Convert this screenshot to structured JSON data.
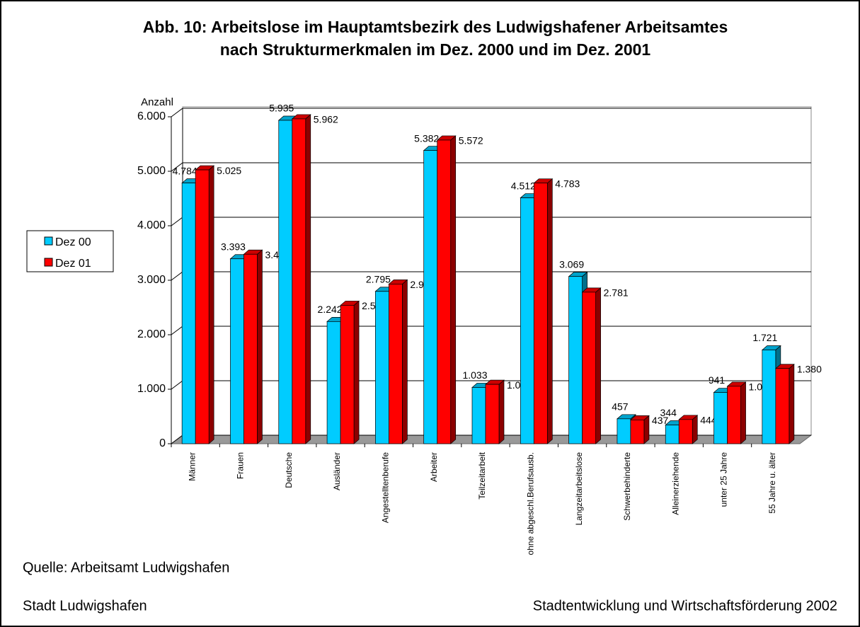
{
  "chart_data": {
    "type": "bar",
    "title": "Abb. 10: Arbeitslose im Hauptamtsbezirk des Ludwigshafener Arbeitsamtes",
    "subtitle": "nach Strukturmerkmalen im Dez. 2000 und im Dez. 2001",
    "y_label": "Anzahl",
    "categories": [
      "Männer",
      "Frauen",
      "Deutsche",
      "Ausländer",
      "Angestelltenberufe",
      "Arbeiter",
      "Teilzeitarbeit",
      "ohne abgeschl.Berufsausb.",
      "Langzeitarbeitslose",
      "Schwerbehinderte",
      "Alleinerziehende",
      "unter 25 Jahre",
      "55 Jahre u. älter"
    ],
    "series": [
      {
        "name": "Dez 00",
        "color": "#00ccff",
        "values": [
          4784,
          3393,
          5935,
          2242,
          2795,
          5382,
          1033,
          4512,
          3069,
          457,
          344,
          941,
          1721
        ],
        "value_labels": [
          "4.784",
          "3.393",
          "5.935",
          "2.242",
          "2.795",
          "5.382",
          "1.033",
          "4.512",
          "3.069",
          "457",
          "344",
          "941",
          "1.721"
        ]
      },
      {
        "name": "Dez 01",
        "color": "#ff0000",
        "values": [
          5025,
          3477,
          5962,
          2540,
          2930,
          5572,
          1089,
          4783,
          2781,
          437,
          444,
          1054,
          1380
        ],
        "value_labels": [
          "5.025",
          "3.477",
          "5.962",
          "2.540",
          "2.930",
          "5.572",
          "1.089",
          "4.783",
          "2.781",
          "437",
          "444",
          "1.054",
          "1.380"
        ]
      }
    ],
    "ylim": [
      0,
      6000
    ],
    "yticks": [
      0,
      {
        "value": 1000,
        "label": "1.000"
      },
      {
        "value": 2000,
        "label": "2.000"
      },
      {
        "value": 3000,
        "label": "3.000"
      },
      {
        "value": 4000,
        "label": "4.000"
      },
      {
        "value": 5000,
        "label": "5.000"
      },
      {
        "value": 6000,
        "label": "6.000"
      }
    ],
    "grid": true,
    "legend": "left",
    "source": "Quelle: Arbeitsamt Ludwigshafen",
    "footer_left": "Stadt Ludwigshafen",
    "footer_right": "Stadtentwicklung und Wirtschaftsförderung 2002"
  }
}
